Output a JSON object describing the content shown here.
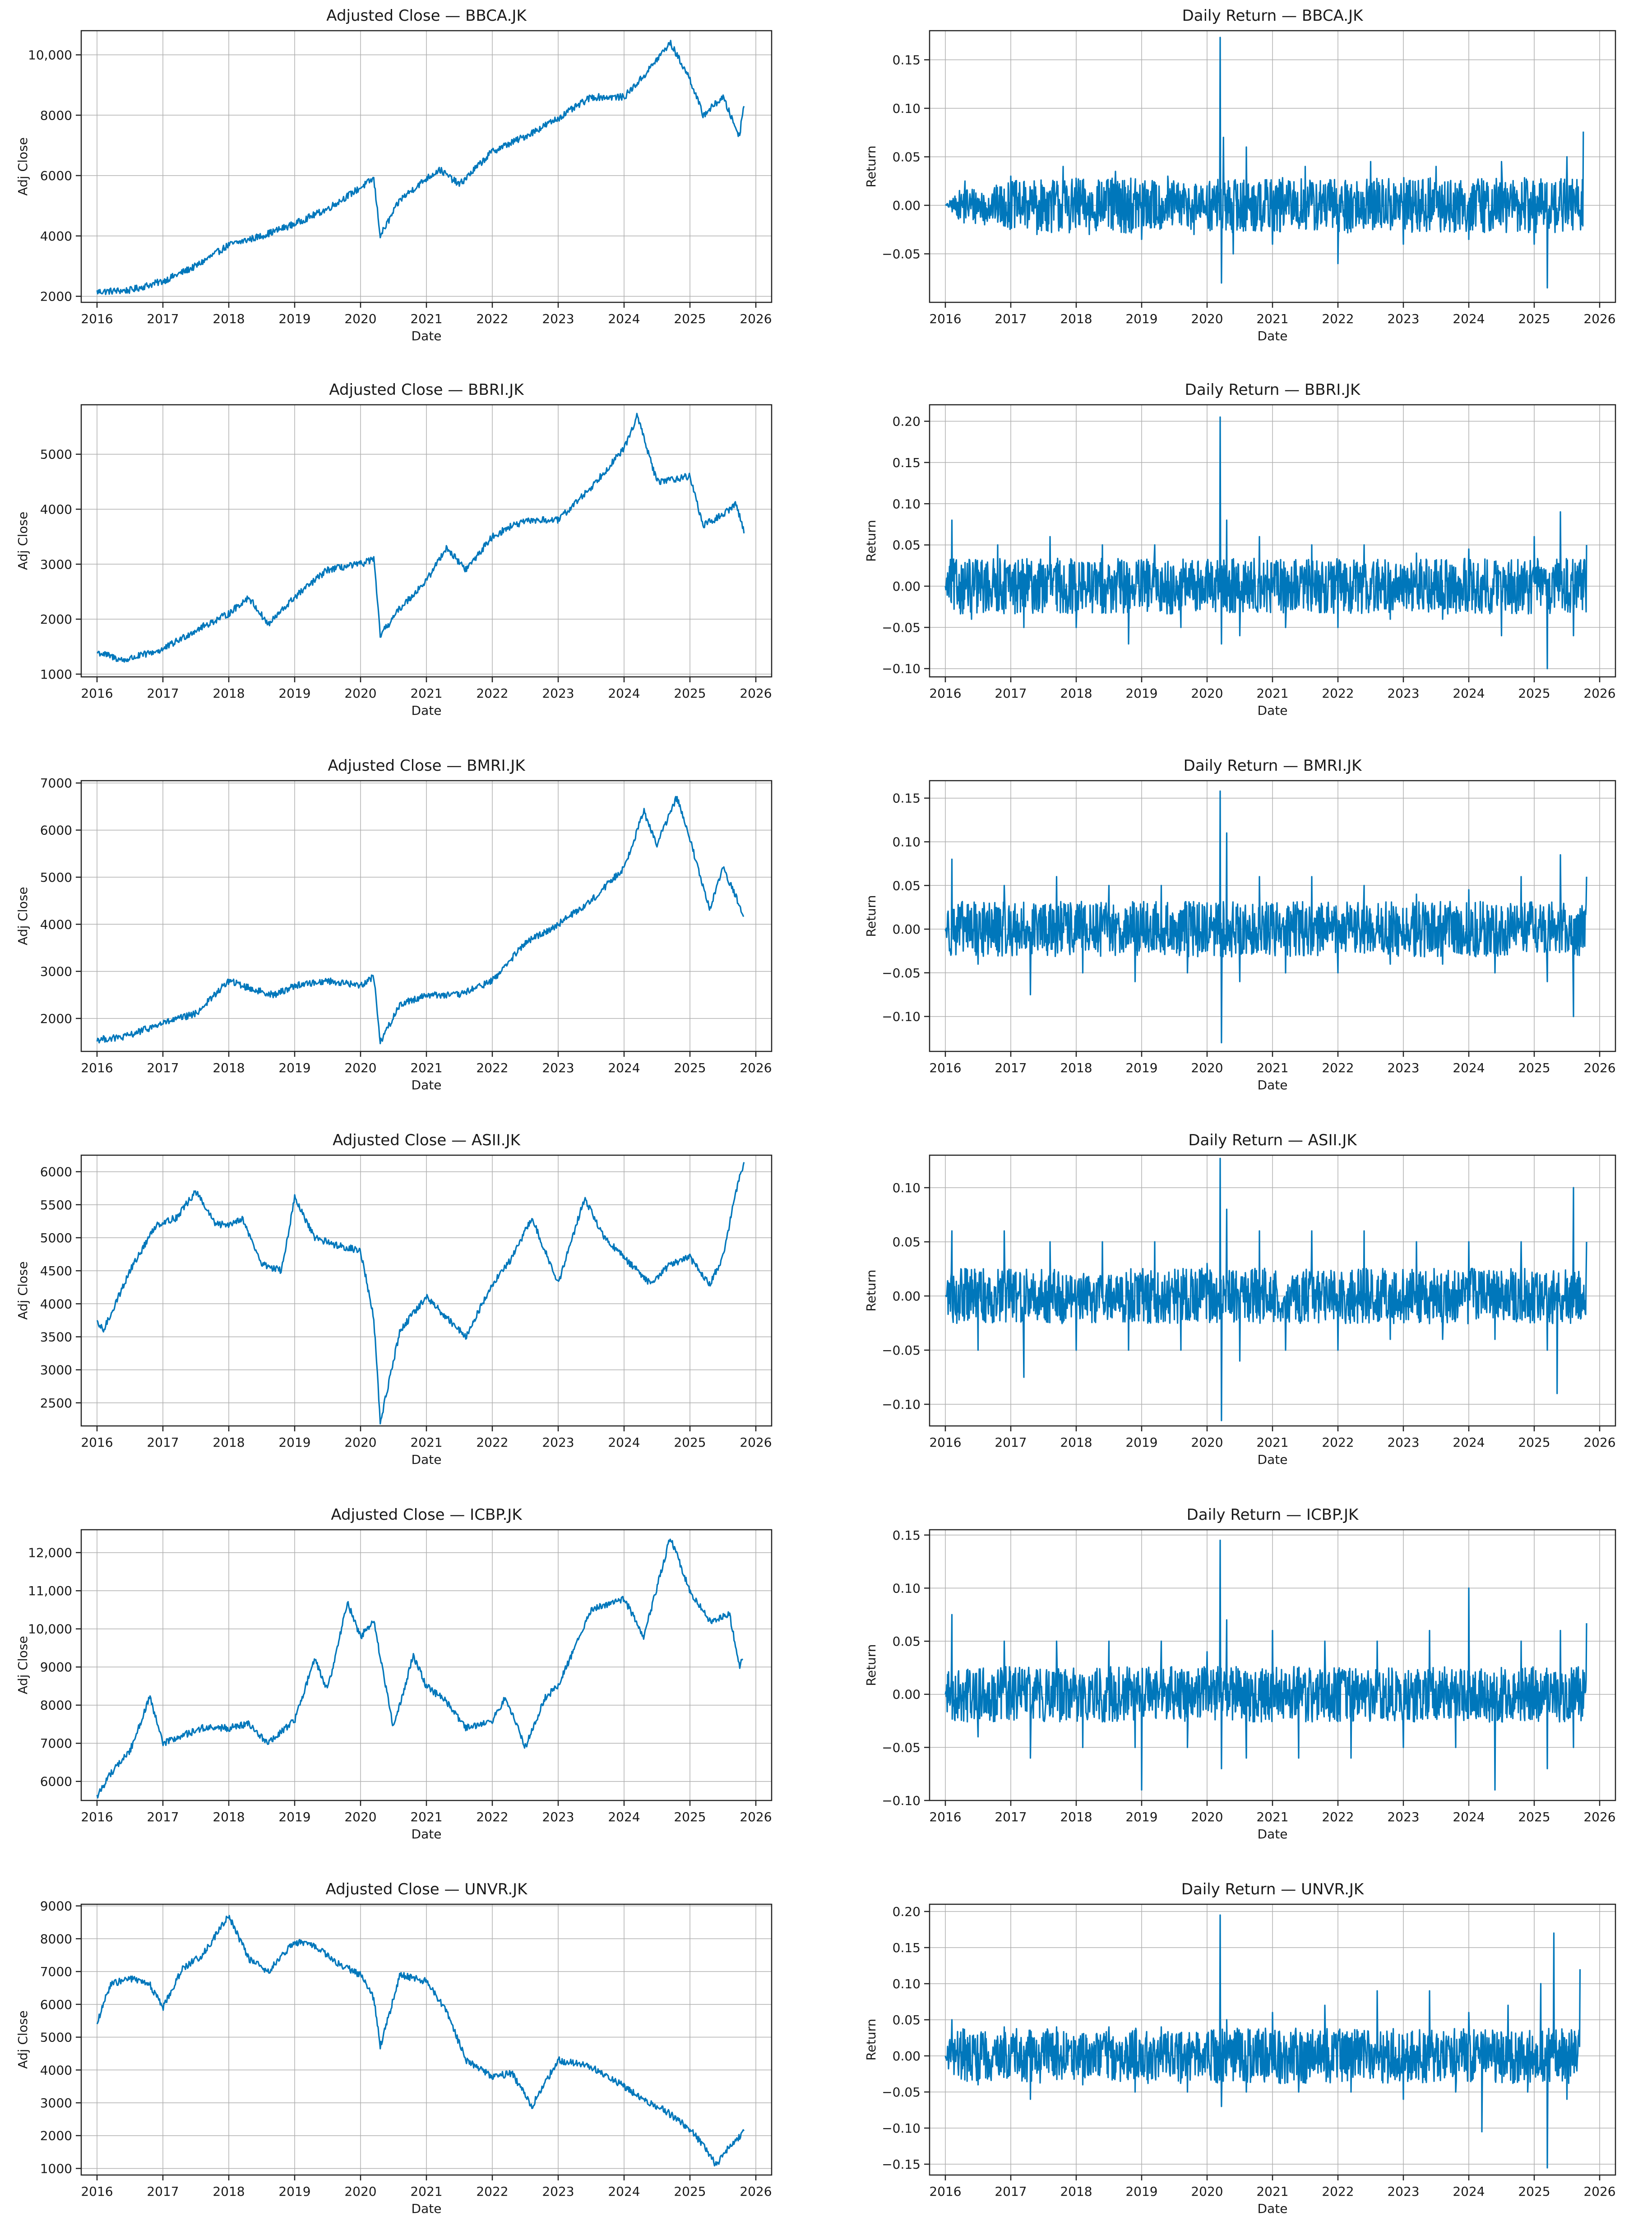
{
  "colors": {
    "line": "#0077bb"
  },
  "chart_data": [
    {
      "type": "line",
      "title": "Adjusted Close — BBCA.JK",
      "xlabel": "Date",
      "ylabel": "Adj Close",
      "xlim": [
        2016,
        2026
      ],
      "ylim": [
        1800,
        10800
      ],
      "yticks": [
        2000,
        4000,
        6000,
        8000,
        10000
      ],
      "ytick_labels": [
        "2000",
        "4000",
        "6000",
        "8000",
        "10,000"
      ],
      "x": [
        2016.0,
        2016.5,
        2017.0,
        2017.5,
        2018.0,
        2018.5,
        2019.0,
        2019.5,
        2020.0,
        2020.2,
        2020.3,
        2020.6,
        2021.0,
        2021.2,
        2021.5,
        2022.0,
        2022.5,
        2023.0,
        2023.5,
        2024.0,
        2024.3,
        2024.7,
        2025.0,
        2025.2,
        2025.5,
        2025.75,
        2025.82
      ],
      "values": [
        2150,
        2200,
        2500,
        3000,
        3700,
        4000,
        4400,
        4900,
        5600,
        5900,
        4000,
        5200,
        5900,
        6200,
        5700,
        6800,
        7300,
        7900,
        8600,
        8600,
        9300,
        10400,
        9200,
        8000,
        8600,
        7300,
        8400
      ]
    },
    {
      "type": "line",
      "title": "Daily Return — BBCA.JK",
      "xlabel": "Date",
      "ylabel": "Return",
      "xlim": [
        2016,
        2026
      ],
      "ylim": [
        -0.1,
        0.18
      ],
      "yticks": [
        -0.05,
        0.0,
        0.05,
        0.1,
        0.15
      ],
      "ytick_labels": [
        "−0.05",
        "0.00",
        "0.05",
        "0.10",
        "0.15"
      ],
      "x": [
        2016.0,
        2016.3,
        2016.6,
        2017.0,
        2017.4,
        2017.8,
        2018.2,
        2018.6,
        2019.0,
        2019.4,
        2019.8,
        2020.0,
        2020.2,
        2020.22,
        2020.25,
        2020.4,
        2020.6,
        2021.0,
        2021.5,
        2022.0,
        2022.5,
        2023.0,
        2023.5,
        2024.0,
        2024.5,
        2025.0,
        2025.2,
        2025.5,
        2025.75
      ],
      "values": [
        0.0,
        0.025,
        -0.02,
        0.03,
        -0.03,
        0.04,
        -0.03,
        0.035,
        -0.035,
        0.03,
        -0.03,
        0.02,
        0.173,
        -0.08,
        0.07,
        -0.05,
        0.06,
        -0.04,
        0.04,
        -0.06,
        0.045,
        -0.04,
        0.04,
        -0.035,
        0.045,
        -0.04,
        -0.085,
        0.05,
        0.076
      ]
    },
    {
      "type": "line",
      "title": "Adjusted Close — BBRI.JK",
      "xlabel": "Date",
      "ylabel": "Adj Close",
      "xlim": [
        2016,
        2026
      ],
      "ylim": [
        950,
        5900
      ],
      "yticks": [
        1000,
        2000,
        3000,
        4000,
        5000
      ],
      "ytick_labels": [
        "1000",
        "2000",
        "3000",
        "4000",
        "5000"
      ],
      "x": [
        2016.0,
        2016.4,
        2017.0,
        2017.5,
        2018.0,
        2018.3,
        2018.6,
        2019.0,
        2019.5,
        2020.0,
        2020.2,
        2020.3,
        2020.6,
        2021.0,
        2021.3,
        2021.6,
        2022.0,
        2022.3,
        2022.6,
        2023.0,
        2023.5,
        2024.0,
        2024.2,
        2024.5,
        2025.0,
        2025.2,
        2025.5,
        2025.7,
        2025.82
      ],
      "values": [
        1400,
        1250,
        1450,
        1800,
        2100,
        2400,
        1900,
        2400,
        2900,
        3000,
        3100,
        1700,
        2200,
        2700,
        3300,
        2900,
        3500,
        3700,
        3800,
        3800,
        4400,
        5100,
        5700,
        4500,
        4600,
        3700,
        3900,
        4100,
        3600
      ]
    },
    {
      "type": "line",
      "title": "Daily Return — BBRI.JK",
      "xlabel": "Date",
      "ylabel": "Return",
      "xlim": [
        2016,
        2026
      ],
      "ylim": [
        -0.11,
        0.22
      ],
      "yticks": [
        -0.1,
        -0.05,
        0.0,
        0.05,
        0.1,
        0.15,
        0.2
      ],
      "ytick_labels": [
        "−0.10",
        "−0.05",
        "0.00",
        "0.05",
        "0.10",
        "0.15",
        "0.20"
      ],
      "x": [
        2016.0,
        2016.1,
        2016.4,
        2016.8,
        2017.2,
        2017.6,
        2018.0,
        2018.4,
        2018.8,
        2019.2,
        2019.6,
        2020.0,
        2020.2,
        2020.22,
        2020.3,
        2020.5,
        2020.8,
        2021.2,
        2021.6,
        2022.0,
        2022.4,
        2022.8,
        2023.2,
        2023.6,
        2024.0,
        2024.5,
        2025.0,
        2025.2,
        2025.4,
        2025.6,
        2025.8
      ],
      "values": [
        0.0,
        0.08,
        -0.04,
        0.05,
        -0.05,
        0.06,
        -0.05,
        0.05,
        -0.07,
        0.05,
        -0.05,
        0.03,
        0.205,
        -0.07,
        0.08,
        -0.06,
        0.06,
        -0.05,
        0.05,
        -0.05,
        0.05,
        -0.04,
        0.04,
        -0.04,
        0.045,
        -0.06,
        0.06,
        -0.1,
        0.09,
        -0.06,
        0.05
      ]
    },
    {
      "type": "line",
      "title": "Adjusted Close — BMRI.JK",
      "xlabel": "Date",
      "ylabel": "Adj Close",
      "xlim": [
        2016,
        2026
      ],
      "ylim": [
        1300,
        7050
      ],
      "yticks": [
        2000,
        3000,
        4000,
        5000,
        6000,
        7000
      ],
      "ytick_labels": [
        "2000",
        "3000",
        "4000",
        "5000",
        "6000",
        "7000"
      ],
      "x": [
        2016.0,
        2016.4,
        2017.0,
        2017.5,
        2018.0,
        2018.4,
        2018.7,
        2019.0,
        2019.5,
        2020.0,
        2020.2,
        2020.3,
        2020.6,
        2021.0,
        2021.5,
        2022.0,
        2022.5,
        2023.0,
        2023.5,
        2024.0,
        2024.3,
        2024.5,
        2024.8,
        2025.0,
        2025.3,
        2025.5,
        2025.82
      ],
      "values": [
        1550,
        1600,
        1900,
        2100,
        2800,
        2600,
        2500,
        2700,
        2800,
        2700,
        2900,
        1500,
        2300,
        2500,
        2500,
        2800,
        3600,
        4000,
        4500,
        5200,
        6400,
        5700,
        6700,
        5800,
        4300,
        5200,
        4200
      ]
    },
    {
      "type": "line",
      "title": "Daily Return — BMRI.JK",
      "xlabel": "Date",
      "ylabel": "Return",
      "xlim": [
        2016,
        2026
      ],
      "ylim": [
        -0.14,
        0.17
      ],
      "yticks": [
        -0.1,
        -0.05,
        0.0,
        0.05,
        0.1,
        0.15
      ],
      "ytick_labels": [
        "−0.10",
        "−0.05",
        "0.00",
        "0.05",
        "0.10",
        "0.15"
      ],
      "x": [
        2016.0,
        2016.1,
        2016.5,
        2016.9,
        2017.3,
        2017.7,
        2018.1,
        2018.5,
        2018.9,
        2019.3,
        2019.7,
        2020.0,
        2020.2,
        2020.22,
        2020.3,
        2020.5,
        2020.8,
        2021.2,
        2021.6,
        2022.0,
        2022.4,
        2022.8,
        2023.2,
        2023.6,
        2024.0,
        2024.4,
        2024.8,
        2025.2,
        2025.4,
        2025.6,
        2025.8
      ],
      "values": [
        0.0,
        0.08,
        -0.04,
        0.05,
        -0.075,
        0.06,
        -0.05,
        0.05,
        -0.06,
        0.05,
        -0.05,
        0.03,
        0.158,
        -0.13,
        0.11,
        -0.06,
        0.06,
        -0.05,
        0.06,
        -0.05,
        0.05,
        -0.04,
        0.04,
        -0.04,
        0.045,
        -0.05,
        0.06,
        -0.06,
        0.085,
        -0.1,
        0.06
      ]
    },
    {
      "type": "line",
      "title": "Adjusted Close — ASII.JK",
      "xlabel": "Date",
      "ylabel": "Adj Close",
      "xlim": [
        2016,
        2026
      ],
      "ylim": [
        2150,
        6250
      ],
      "yticks": [
        2500,
        3000,
        3500,
        4000,
        4500,
        5000,
        5500,
        6000
      ],
      "ytick_labels": [
        "2500",
        "3000",
        "3500",
        "4000",
        "4500",
        "5000",
        "5500",
        "6000"
      ],
      "x": [
        2016.0,
        2016.1,
        2016.5,
        2016.9,
        2017.2,
        2017.5,
        2017.8,
        2018.0,
        2018.2,
        2018.5,
        2018.8,
        2019.0,
        2019.3,
        2019.6,
        2020.0,
        2020.2,
        2020.3,
        2020.6,
        2021.0,
        2021.3,
        2021.6,
        2022.0,
        2022.3,
        2022.6,
        2023.0,
        2023.4,
        2023.7,
        2024.0,
        2024.4,
        2024.7,
        2025.0,
        2025.3,
        2025.5,
        2025.7,
        2025.82
      ],
      "values": [
        3700,
        3600,
        4500,
        5200,
        5300,
        5700,
        5200,
        5200,
        5300,
        4600,
        4500,
        5600,
        5000,
        4900,
        4800,
        3800,
        2200,
        3600,
        4100,
        3800,
        3500,
        4300,
        4700,
        5300,
        4300,
        5600,
        5000,
        4700,
        4300,
        4600,
        4700,
        4300,
        4700,
        5700,
        6150
      ]
    },
    {
      "type": "line",
      "title": "Daily Return — ASII.JK",
      "xlabel": "Date",
      "ylabel": "Return",
      "xlim": [
        2016,
        2026
      ],
      "ylim": [
        -0.12,
        0.13
      ],
      "yticks": [
        -0.1,
        -0.05,
        0.0,
        0.05,
        0.1
      ],
      "ytick_labels": [
        "−0.10",
        "−0.05",
        "0.00",
        "0.05",
        "0.10"
      ],
      "x": [
        2016.0,
        2016.1,
        2016.5,
        2016.9,
        2017.2,
        2017.6,
        2018.0,
        2018.4,
        2018.8,
        2019.2,
        2019.6,
        2020.0,
        2020.2,
        2020.22,
        2020.3,
        2020.5,
        2020.8,
        2021.2,
        2021.6,
        2022.0,
        2022.4,
        2022.8,
        2023.2,
        2023.6,
        2024.0,
        2024.4,
        2024.8,
        2025.2,
        2025.35,
        2025.6,
        2025.8
      ],
      "values": [
        0.0,
        0.06,
        -0.05,
        0.06,
        -0.075,
        0.05,
        -0.05,
        0.05,
        -0.05,
        0.05,
        -0.05,
        0.03,
        0.127,
        -0.115,
        0.08,
        -0.06,
        0.06,
        -0.05,
        0.06,
        -0.05,
        0.06,
        -0.04,
        0.05,
        -0.04,
        0.05,
        -0.04,
        0.05,
        -0.05,
        -0.09,
        0.1,
        0.05
      ]
    },
    {
      "type": "line",
      "title": "Adjusted Close — ICBP.JK",
      "xlabel": "Date",
      "ylabel": "Adj Close",
      "xlim": [
        2016,
        2026
      ],
      "ylim": [
        5500,
        12600
      ],
      "yticks": [
        6000,
        7000,
        8000,
        9000,
        10000,
        11000,
        12000
      ],
      "ytick_labels": [
        "6000",
        "7000",
        "8000",
        "9000",
        "10,000",
        "11,000",
        "12,000"
      ],
      "x": [
        2016.0,
        2016.2,
        2016.5,
        2016.8,
        2017.0,
        2017.3,
        2017.6,
        2018.0,
        2018.3,
        2018.6,
        2019.0,
        2019.3,
        2019.5,
        2019.8,
        2020.0,
        2020.2,
        2020.5,
        2020.8,
        2021.0,
        2021.3,
        2021.6,
        2022.0,
        2022.2,
        2022.5,
        2022.8,
        2023.0,
        2023.5,
        2024.0,
        2024.3,
        2024.7,
        2025.0,
        2025.3,
        2025.6,
        2025.75,
        2025.8
      ],
      "values": [
        5600,
        6200,
        6800,
        8200,
        7000,
        7200,
        7400,
        7400,
        7500,
        7000,
        7600,
        9200,
        8400,
        10700,
        9800,
        10200,
        7400,
        9300,
        8500,
        8100,
        7400,
        7600,
        8200,
        6900,
        8200,
        8500,
        10500,
        10800,
        9800,
        12400,
        11000,
        10200,
        10400,
        9000,
        9200
      ]
    },
    {
      "type": "line",
      "title": "Daily Return — ICBP.JK",
      "xlabel": "Date",
      "ylabel": "Return",
      "xlim": [
        2016,
        2026
      ],
      "ylim": [
        -0.1,
        0.155
      ],
      "yticks": [
        -0.1,
        -0.05,
        0.0,
        0.05,
        0.1,
        0.15
      ],
      "ytick_labels": [
        "−0.10",
        "−0.05",
        "0.00",
        "0.05",
        "0.10",
        "0.15"
      ],
      "x": [
        2016.0,
        2016.1,
        2016.5,
        2016.9,
        2017.3,
        2017.7,
        2018.1,
        2018.5,
        2018.9,
        2019.0,
        2019.3,
        2019.7,
        2020.0,
        2020.2,
        2020.22,
        2020.3,
        2020.6,
        2021.0,
        2021.4,
        2021.8,
        2022.2,
        2022.6,
        2023.0,
        2023.4,
        2023.8,
        2024.0,
        2024.4,
        2024.8,
        2025.2,
        2025.4,
        2025.6,
        2025.8
      ],
      "values": [
        0.0,
        0.075,
        -0.04,
        0.05,
        -0.06,
        0.05,
        -0.05,
        0.05,
        -0.05,
        -0.09,
        0.05,
        -0.05,
        0.04,
        0.145,
        -0.07,
        0.07,
        -0.06,
        0.06,
        -0.06,
        0.05,
        -0.06,
        0.05,
        -0.05,
        0.06,
        -0.05,
        0.1,
        -0.09,
        0.05,
        -0.07,
        0.06,
        -0.05,
        0.067
      ]
    },
    {
      "type": "line",
      "title": "Adjusted Close — UNVR.JK",
      "xlabel": "Date",
      "ylabel": "Adj Close",
      "xlim": [
        2016,
        2026
      ],
      "ylim": [
        800,
        9050
      ],
      "yticks": [
        1000,
        2000,
        3000,
        4000,
        5000,
        6000,
        7000,
        8000,
        9000
      ],
      "ytick_labels": [
        "1000",
        "2000",
        "3000",
        "4000",
        "5000",
        "6000",
        "7000",
        "8000",
        "9000"
      ],
      "x": [
        2016.0,
        2016.2,
        2016.5,
        2016.8,
        2017.0,
        2017.3,
        2017.6,
        2018.0,
        2018.3,
        2018.6,
        2019.0,
        2019.3,
        2019.6,
        2020.0,
        2020.2,
        2020.3,
        2020.6,
        2021.0,
        2021.3,
        2021.6,
        2022.0,
        2022.3,
        2022.6,
        2023.0,
        2023.5,
        2024.0,
        2024.3,
        2024.6,
        2025.0,
        2025.2,
        2025.4,
        2025.6,
        2025.82
      ],
      "values": [
        5400,
        6600,
        6800,
        6600,
        5900,
        7100,
        7500,
        8700,
        7400,
        7000,
        7900,
        7800,
        7300,
        6900,
        6200,
        4700,
        6900,
        6700,
        5800,
        4300,
        3800,
        3900,
        2900,
        4300,
        4100,
        3500,
        3100,
        2800,
        2200,
        1700,
        1100,
        1700,
        2100
      ]
    },
    {
      "type": "line",
      "title": "Daily Return — UNVR.JK",
      "xlabel": "Date",
      "ylabel": "Return",
      "xlim": [
        2016,
        2026
      ],
      "ylim": [
        -0.165,
        0.21
      ],
      "yticks": [
        -0.15,
        -0.1,
        -0.05,
        0.0,
        0.05,
        0.1,
        0.15,
        0.2
      ],
      "ytick_labels": [
        "−0.15",
        "−0.10",
        "−0.05",
        "0.00",
        "0.05",
        "0.10",
        "0.15",
        "0.20"
      ],
      "x": [
        2016.0,
        2016.1,
        2016.5,
        2016.9,
        2017.3,
        2017.7,
        2018.1,
        2018.5,
        2018.9,
        2019.3,
        2019.7,
        2020.0,
        2020.2,
        2020.22,
        2020.3,
        2020.6,
        2021.0,
        2021.4,
        2021.8,
        2022.2,
        2022.6,
        2023.0,
        2023.4,
        2023.8,
        2024.0,
        2024.2,
        2024.6,
        2024.9,
        2025.1,
        2025.2,
        2025.3,
        2025.5,
        2025.7
      ],
      "values": [
        0.0,
        0.05,
        -0.04,
        0.04,
        -0.06,
        0.04,
        -0.04,
        0.04,
        -0.05,
        0.04,
        -0.05,
        0.03,
        0.195,
        -0.07,
        0.05,
        -0.05,
        0.06,
        -0.05,
        0.07,
        -0.05,
        0.09,
        -0.06,
        0.09,
        -0.05,
        0.06,
        -0.105,
        0.07,
        -0.05,
        0.1,
        -0.155,
        0.17,
        -0.06,
        0.12
      ]
    }
  ]
}
